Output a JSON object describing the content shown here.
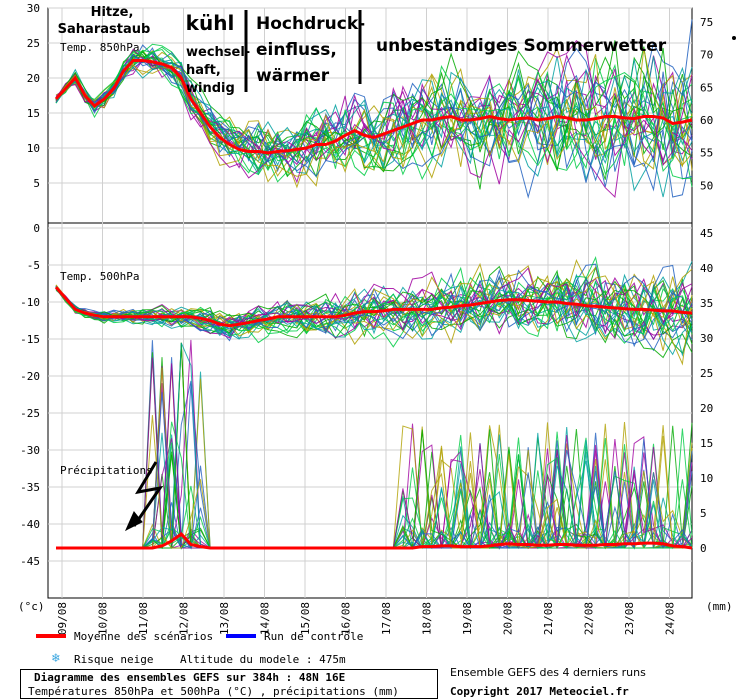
{
  "chart_data": [
    {
      "type": "line",
      "panel": "top",
      "label": "Temp. 850hPa",
      "ylim_left": [
        0,
        30
      ],
      "yticks_left": [
        "5",
        "10",
        "15",
        "20",
        "25",
        "30"
      ],
      "ylim_right": [
        45,
        75
      ],
      "yticks_right": [
        "50",
        "55",
        "60",
        "65",
        "70",
        "75"
      ],
      "x_step_hours": 6,
      "series": [
        {
          "name": "Moyenne des scénarios",
          "color": "#ff0000",
          "values": [
            17,
            18.5,
            20,
            17.5,
            16,
            17,
            18.5,
            21,
            22.5,
            22.5,
            22.3,
            22,
            21.5,
            20,
            17,
            15,
            13,
            11.5,
            10.5,
            9.8,
            9.5,
            9.5,
            9.3,
            9.5,
            9.6,
            9.8,
            10,
            10.5,
            10.5,
            11,
            11.8,
            12.5,
            11.8,
            11.5,
            12,
            12.5,
            13,
            13.5,
            14,
            14,
            14.3,
            14.5,
            14,
            14,
            14.2,
            14.5,
            14.2,
            14,
            14.2,
            14.3,
            14,
            14.2,
            14.5,
            14.3,
            14,
            14,
            14.2,
            14.5,
            14.5,
            14.3,
            14.2,
            14.5,
            14.5,
            14.3,
            13.5,
            13.7,
            14
          ]
        }
      ]
    },
    {
      "type": "line",
      "panel": "bottom",
      "label": "Temp. 500hPa",
      "ylim_left": [
        -50,
        0
      ],
      "yticks_left": [
        "-45",
        "-40",
        "-35",
        "-30",
        "-25",
        "-20",
        "-15",
        "-10",
        "-5",
        "0"
      ],
      "ylim_right": [
        0,
        45
      ],
      "yticks_right": [
        "0",
        "5",
        "10",
        "15",
        "20",
        "25",
        "30",
        "35",
        "40",
        "45"
      ],
      "x_step_hours": 6,
      "series": [
        {
          "name": "Moyenne des scénarios",
          "color": "#ff0000",
          "values": [
            -8,
            -9.5,
            -11,
            -11.5,
            -11.8,
            -12,
            -12,
            -12,
            -12,
            -12,
            -12,
            -12,
            -12,
            -12,
            -12,
            -12.2,
            -12.5,
            -13,
            -13.2,
            -13,
            -12.8,
            -12.5,
            -12.3,
            -12,
            -12,
            -12,
            -12,
            -12,
            -12,
            -12,
            -11.8,
            -11.5,
            -11.3,
            -11.3,
            -11.2,
            -11,
            -11,
            -11,
            -11,
            -11,
            -10.8,
            -10.7,
            -10.5,
            -10.4,
            -10.2,
            -10,
            -9.8,
            -9.7,
            -9.7,
            -9.8,
            -9.9,
            -10,
            -10,
            -10.2,
            -10.3,
            -10.5,
            -10.6,
            -10.7,
            -10.8,
            -10.9,
            -11,
            -11,
            -11.1,
            -11.2,
            -11.2,
            -11.4,
            -11.5
          ]
        },
        {
          "name": "Précipitations (moyenne)",
          "color": "#ff0000",
          "values": [
            0,
            0,
            0,
            0,
            0,
            0,
            0,
            0,
            0,
            0,
            0,
            0.3,
            1,
            2,
            0.5,
            0.2,
            0,
            0,
            0,
            0,
            0,
            0,
            0,
            0,
            0,
            0,
            0,
            0,
            0,
            0,
            0,
            0,
            0,
            0,
            0,
            0,
            0,
            0,
            0.2,
            0.2,
            0.3,
            0.3,
            0.2,
            0.2,
            0.2,
            0.3,
            0.5,
            0.6,
            0.5,
            0.5,
            0.4,
            0.4,
            0.5,
            0.5,
            0.4,
            0.4,
            0.4,
            0.5,
            0.5,
            0.6,
            0.6,
            0.7,
            0.7,
            0.6,
            0.3,
            0.2,
            0
          ]
        }
      ]
    }
  ],
  "x_tick_labels": [
    "09/08",
    "10/08",
    "11/08",
    "12/08",
    "13/08",
    "14/08",
    "15/08",
    "16/08",
    "17/08",
    "18/08",
    "19/08",
    "20/08",
    "21/08",
    "22/08",
    "23/08",
    "24/08"
  ],
  "axis_units": {
    "left": "(°c)",
    "right": "(mm)"
  },
  "annotations": {
    "hitze": [
      "Hitze,",
      "Saharastaub"
    ],
    "kuehl": "kühl",
    "wechselhaft": [
      "wechsel-",
      "haft,",
      "windig"
    ],
    "hochdruck": [
      "Hochdruck-",
      "einfluss,",
      "wärmer"
    ],
    "sommer": "unbeständiges Sommerwetter",
    "precip": "Précipitations"
  },
  "legend": {
    "mean_label": "Moyenne des scénarios",
    "mean_color": "#ff0000",
    "control_label": "Run de contrôle",
    "control_color": "#0000ff",
    "snow_label": "Risque neige",
    "snow_icon": "snowflake-icon",
    "altitude": "Altitude du modele : 475m",
    "runs": "Ensemble GEFS des 4 derniers runs",
    "copyright": "Copyright 2017 Meteociel.fr"
  },
  "caption": {
    "title": "Diagramme des ensembles GEFS sur 384h : 48N 16E",
    "subtitle": "Températures 850hPa et 500hPa (°C) , précipitations (mm)"
  },
  "colors": {
    "ensemble": [
      "#00aa00",
      "#a000a0",
      "#00a0a0",
      "#b0a000",
      "#2060c0",
      "#00cc44"
    ],
    "grid": "#cccccc",
    "lightning": "#000000"
  }
}
